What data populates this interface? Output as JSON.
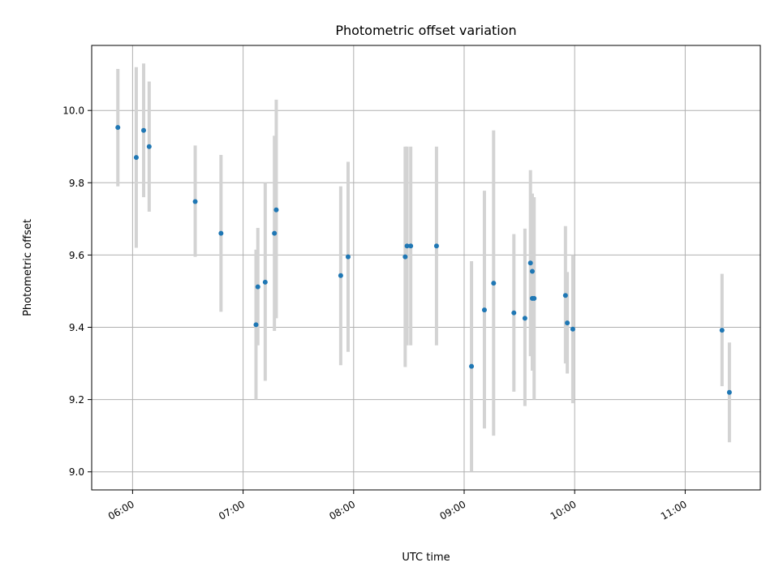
{
  "chart_data": {
    "type": "scatter",
    "title": "Photometric offset variation",
    "xlabel": "UTC time",
    "ylabel": "Photometric offset",
    "xlim_hours": [
      5.63,
      11.68
    ],
    "ylim": [
      8.95,
      10.18
    ],
    "grid": true,
    "x_ticks": [
      {
        "hour": 6,
        "label": "06:00"
      },
      {
        "hour": 7,
        "label": "07:00"
      },
      {
        "hour": 8,
        "label": "08:00"
      },
      {
        "hour": 9,
        "label": "09:00"
      },
      {
        "hour": 10,
        "label": "10:00"
      },
      {
        "hour": 11,
        "label": "11:00"
      }
    ],
    "y_ticks": [
      {
        "value": 9.0,
        "label": "9.0"
      },
      {
        "value": 9.2,
        "label": "9.2"
      },
      {
        "value": 9.4,
        "label": "9.4"
      },
      {
        "value": 9.6,
        "label": "9.6"
      },
      {
        "value": 9.8,
        "label": "9.8"
      },
      {
        "value": 10.0,
        "label": "10.0"
      }
    ],
    "point_color": "#1f77b4",
    "errorbar_color": "#d3d3d3",
    "points": [
      {
        "time": "05:52",
        "y": 9.953,
        "low": 9.79,
        "high": 10.115
      },
      {
        "time": "06:02",
        "y": 9.87,
        "low": 9.62,
        "high": 10.12
      },
      {
        "time": "06:06",
        "y": 9.945,
        "low": 9.76,
        "high": 10.13
      },
      {
        "time": "06:09",
        "y": 9.9,
        "low": 9.72,
        "high": 10.08
      },
      {
        "time": "06:34",
        "y": 9.748,
        "low": 9.595,
        "high": 9.903
      },
      {
        "time": "06:48",
        "y": 9.66,
        "low": 9.443,
        "high": 9.877
      },
      {
        "time": "07:07",
        "y": 9.407,
        "low": 9.2,
        "high": 9.615
      },
      {
        "time": "07:08",
        "y": 9.512,
        "low": 9.35,
        "high": 9.675
      },
      {
        "time": "07:12",
        "y": 9.525,
        "low": 9.252,
        "high": 9.8
      },
      {
        "time": "07:17",
        "y": 9.66,
        "low": 9.39,
        "high": 9.93
      },
      {
        "time": "07:18",
        "y": 9.725,
        "low": 9.425,
        "high": 10.03
      },
      {
        "time": "07:53",
        "y": 9.543,
        "low": 9.295,
        "high": 9.79
      },
      {
        "time": "07:57",
        "y": 9.595,
        "low": 9.332,
        "high": 9.858
      },
      {
        "time": "08:28",
        "y": 9.595,
        "low": 9.29,
        "high": 9.9
      },
      {
        "time": "08:29",
        "y": 9.625,
        "low": 9.35,
        "high": 9.9
      },
      {
        "time": "08:31",
        "y": 9.625,
        "low": 9.35,
        "high": 9.9
      },
      {
        "time": "08:45",
        "y": 9.625,
        "low": 9.35,
        "high": 9.9
      },
      {
        "time": "09:04",
        "y": 9.292,
        "low": 9.0,
        "high": 9.583
      },
      {
        "time": "09:11",
        "y": 9.448,
        "low": 9.12,
        "high": 9.778
      },
      {
        "time": "09:16",
        "y": 9.522,
        "low": 9.1,
        "high": 9.945
      },
      {
        "time": "09:27",
        "y": 9.44,
        "low": 9.222,
        "high": 9.658
      },
      {
        "time": "09:33",
        "y": 9.425,
        "low": 9.182,
        "high": 9.673
      },
      {
        "time": "09:36",
        "y": 9.578,
        "low": 9.32,
        "high": 9.835
      },
      {
        "time": "09:37",
        "y": 9.555,
        "low": 9.345,
        "high": 9.77
      },
      {
        "time": "09:37",
        "y": 9.48,
        "low": 9.28,
        "high": 9.765
      },
      {
        "time": "09:38",
        "y": 9.48,
        "low": 9.2,
        "high": 9.76
      },
      {
        "time": "09:55",
        "y": 9.488,
        "low": 9.3,
        "high": 9.68
      },
      {
        "time": "09:56",
        "y": 9.412,
        "low": 9.272,
        "high": 9.553
      },
      {
        "time": "09:59",
        "y": 9.395,
        "low": 9.19,
        "high": 9.6
      },
      {
        "time": "11:20",
        "y": 9.392,
        "low": 9.237,
        "high": 9.548
      },
      {
        "time": "11:24",
        "y": 9.22,
        "low": 9.082,
        "high": 9.358
      }
    ]
  }
}
